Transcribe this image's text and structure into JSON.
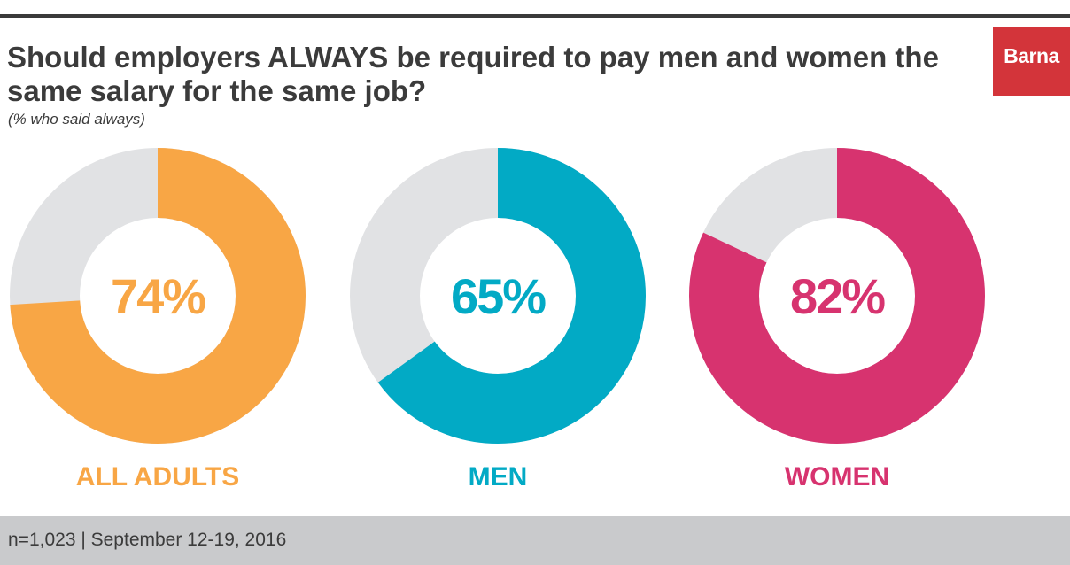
{
  "header": {
    "title": "Should employers ALWAYS be required to pay men and women the same salary for the same job?",
    "subtitle": "(% who said always)",
    "logo_text": "Barna"
  },
  "footer": {
    "note": "n=1,023 | September 12-19, 2016"
  },
  "colors": {
    "remainder": "#e1e2e4",
    "logo_bg": "#d3343a",
    "footer_bg": "#c9cacc",
    "text": "#3b3b3b"
  },
  "chart_data": {
    "type": "pie",
    "style": "donut",
    "title": "Should employers ALWAYS be required to pay men and women the same salary for the same job?",
    "subtitle": "(% who said always)",
    "unit": "%",
    "series": [
      {
        "name": "ALL ADULTS",
        "value": 74,
        "label": "74%",
        "color": "#f8a645"
      },
      {
        "name": "MEN",
        "value": 65,
        "label": "65%",
        "color": "#02aac5"
      },
      {
        "name": "WOMEN",
        "value": 82,
        "label": "82%",
        "color": "#d7336f"
      }
    ]
  }
}
